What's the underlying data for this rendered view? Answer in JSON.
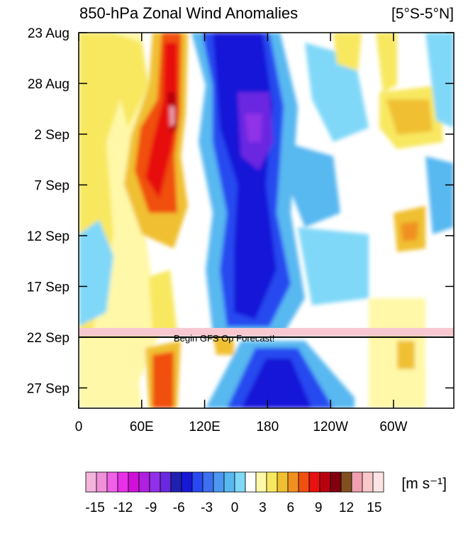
{
  "chart_data": {
    "type": "hovmoller",
    "title": "850-hPa Zonal Wind Anomalies",
    "subtitle": "[5°S-5°N]",
    "annotation": "Begin GFS Op Forecast!",
    "forecast_start": 30,
    "xlim": [
      0,
      357.5
    ],
    "xticks": [
      0,
      {
        "value": 60,
        "label": "60E"
      },
      {
        "value": 120,
        "label": "120E"
      },
      180,
      {
        "value": 240,
        "label": "120W"
      },
      {
        "value": 300,
        "label": "60W"
      }
    ],
    "ylim": [
      0,
      37
    ],
    "yticks": [
      {
        "value": 0,
        "label": "23 Aug"
      },
      {
        "value": 5,
        "label": "28 Aug"
      },
      {
        "value": 10,
        "label": "2 Sep"
      },
      {
        "value": 15,
        "label": "7 Sep"
      },
      {
        "value": 20,
        "label": "12 Sep"
      },
      {
        "value": 25,
        "label": "17 Sep"
      },
      {
        "value": 30,
        "label": "22 Sep"
      },
      {
        "value": 35,
        "label": "27 Sep"
      }
    ],
    "colorbar": {
      "unit": "[m s⁻¹]",
      "lim": [
        -16,
        16
      ],
      "ticks": [
        -15,
        -12,
        -9,
        -6,
        -3,
        0,
        3,
        6,
        9,
        12,
        15
      ],
      "colors": [
        "#f4b4dc",
        "#f090d8",
        "#f060e8",
        "#e830e8",
        "#d010d8",
        "#b020e0",
        "#9030e8",
        "#6a28e0",
        "#2020b0",
        "#1818d8",
        "#2848f0",
        "#3c70f0",
        "#4c98f0",
        "#58b8f0",
        "#80d8f8",
        "#ffffff",
        "#fff8a8",
        "#f8e860",
        "#f0c030",
        "#f09020",
        "#f05010",
        "#e81010",
        "#b80010",
        "#800010",
        "#805020",
        "#f0a0b0",
        "#f8c8c8",
        "#fde4e4"
      ]
    }
  }
}
